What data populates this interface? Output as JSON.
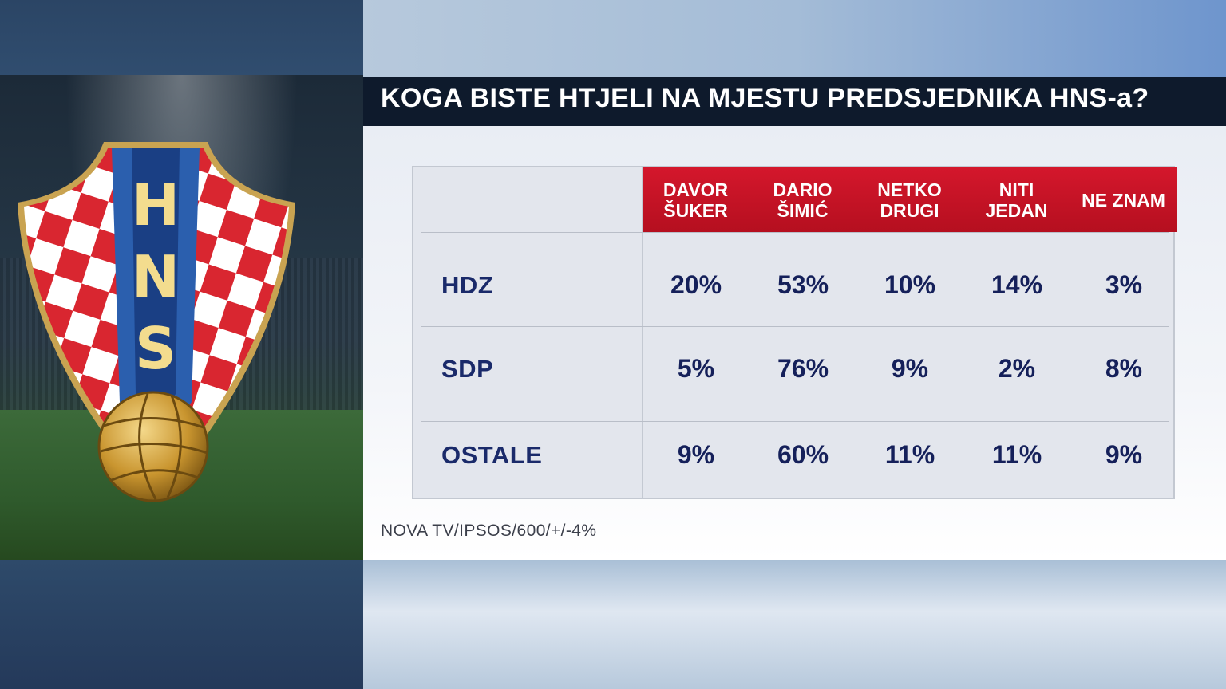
{
  "title": "KOGA BISTE HTJELI NA MJESTU PREDSJEDNIKA HNS-a?",
  "logo": {
    "letters": [
      "H",
      "N",
      "S"
    ]
  },
  "table": {
    "columns": [
      "DAVOR\nŠUKER",
      "DARIO\nŠIMIĆ",
      "NETKO\nDRUGI",
      "NITI\nJEDAN",
      "NE ZNAM"
    ],
    "rows": [
      {
        "label": "HDZ",
        "values": [
          "20%",
          "53%",
          "10%",
          "14%",
          "3%"
        ]
      },
      {
        "label": "SDP",
        "values": [
          "5%",
          "76%",
          "9%",
          "2%",
          "8%"
        ]
      },
      {
        "label": "OSTALE",
        "values": [
          "9%",
          "60%",
          "11%",
          "11%",
          "9%"
        ]
      }
    ]
  },
  "source": "NOVA TV/IPSOS/600/+/-4%",
  "colors": {
    "header_red": "#c8142a",
    "title_bar": "#0e1a2c",
    "value_text": "#15205a"
  }
}
